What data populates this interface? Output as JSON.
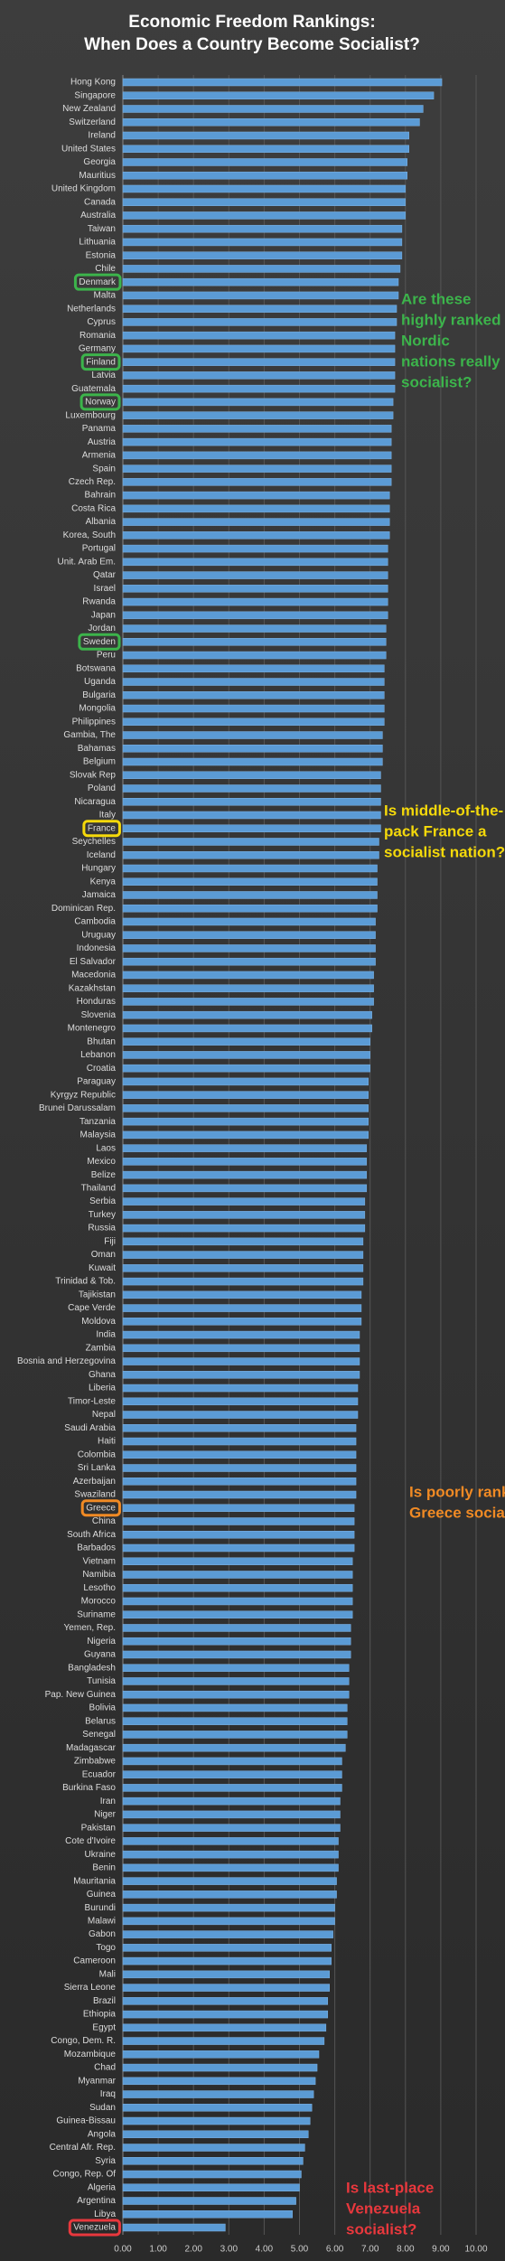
{
  "chart_data": {
    "type": "barh",
    "title": [
      "Economic Freedom Rankings:",
      "When Does a Country Become Socialist?"
    ],
    "categories": [
      "Hong Kong",
      "Singapore",
      "New Zealand",
      "Switzerland",
      "Ireland",
      "United States",
      "Georgia",
      "Mauritius",
      "United Kingdom",
      "Canada",
      "Australia",
      "Taiwan",
      "Lithuania",
      "Estonia",
      "Chile",
      "Denmark",
      "Malta",
      "Netherlands",
      "Cyprus",
      "Romania",
      "Germany",
      "Finland",
      "Latvia",
      "Guatemala",
      "Norway",
      "Luxembourg",
      "Panama",
      "Austria",
      "Armenia",
      "Spain",
      "Czech Rep.",
      "Bahrain",
      "Costa Rica",
      "Albania",
      "Korea, South",
      "Portugal",
      "Unit. Arab Em.",
      "Qatar",
      "Israel",
      "Rwanda",
      "Japan",
      "Jordan",
      "Sweden",
      "Peru",
      "Botswana",
      "Uganda",
      "Bulgaria",
      "Mongolia",
      "Philippines",
      "Gambia, The",
      "Bahamas",
      "Belgium",
      "Slovak Rep",
      "Poland",
      "Nicaragua",
      "Italy",
      "France",
      "Seychelles",
      "Iceland",
      "Hungary",
      "Kenya",
      "Jamaica",
      "Dominican Rep.",
      "Cambodia",
      "Uruguay",
      "Indonesia",
      "El Salvador",
      "Macedonia",
      "Kazakhstan",
      "Honduras",
      "Slovenia",
      "Montenegro",
      "Bhutan",
      "Lebanon",
      "Croatia",
      "Paraguay",
      "Kyrgyz Republic",
      "Brunei Darussalam",
      "Tanzania",
      "Malaysia",
      "Laos",
      "Mexico",
      "Belize",
      "Thailand",
      "Serbia",
      "Turkey",
      "Russia",
      "Fiji",
      "Oman",
      "Kuwait",
      "Trinidad & Tob.",
      "Tajikistan",
      "Cape Verde",
      "Moldova",
      "India",
      "Zambia",
      "Bosnia and Herzegovina",
      "Ghana",
      "Liberia",
      "Timor-Leste",
      "Nepal",
      "Saudi Arabia",
      "Haiti",
      "Colombia",
      "Sri Lanka",
      "Azerbaijan",
      "Swaziland",
      "Greece",
      "China",
      "South Africa",
      "Barbados",
      "Vietnam",
      "Namibia",
      "Lesotho",
      "Morocco",
      "Suriname",
      "Yemen, Rep.",
      "Nigeria",
      "Guyana",
      "Bangladesh",
      "Tunisia",
      "Pap. New Guinea",
      "Bolivia",
      "Belarus",
      "Senegal",
      "Madagascar",
      "Zimbabwe",
      "Ecuador",
      "Burkina Faso",
      "Iran",
      "Niger",
      "Pakistan",
      "Cote d'Ivoire",
      "Ukraine",
      "Benin",
      "Mauritania",
      "Guinea",
      "Burundi",
      "Malawi",
      "Gabon",
      "Togo",
      "Cameroon",
      "Mali",
      "Sierra Leone",
      "Brazil",
      "Ethiopia",
      "Egypt",
      "Congo, Dem. R.",
      "Mozambique",
      "Chad",
      "Myanmar",
      "Iraq",
      "Sudan",
      "Guinea-Bissau",
      "Angola",
      "Central Afr. Rep.",
      "Syria",
      "Congo, Rep. Of",
      "Algeria",
      "Argentina",
      "Libya",
      "Venezuela"
    ],
    "values": [
      9.03,
      8.8,
      8.5,
      8.4,
      8.1,
      8.1,
      8.05,
      8.05,
      8.0,
      8.0,
      8.0,
      7.9,
      7.9,
      7.9,
      7.85,
      7.8,
      7.8,
      7.75,
      7.75,
      7.7,
      7.7,
      7.7,
      7.7,
      7.7,
      7.65,
      7.65,
      7.6,
      7.6,
      7.6,
      7.6,
      7.6,
      7.55,
      7.55,
      7.55,
      7.55,
      7.5,
      7.5,
      7.5,
      7.5,
      7.5,
      7.5,
      7.45,
      7.45,
      7.45,
      7.4,
      7.4,
      7.4,
      7.4,
      7.4,
      7.35,
      7.35,
      7.35,
      7.3,
      7.3,
      7.3,
      7.3,
      7.3,
      7.25,
      7.25,
      7.2,
      7.2,
      7.2,
      7.2,
      7.15,
      7.15,
      7.15,
      7.15,
      7.1,
      7.1,
      7.1,
      7.05,
      7.05,
      7.0,
      7.0,
      7.0,
      6.95,
      6.95,
      6.95,
      6.95,
      6.95,
      6.9,
      6.9,
      6.9,
      6.9,
      6.85,
      6.85,
      6.85,
      6.8,
      6.8,
      6.8,
      6.8,
      6.75,
      6.75,
      6.75,
      6.7,
      6.7,
      6.7,
      6.7,
      6.65,
      6.65,
      6.65,
      6.6,
      6.6,
      6.6,
      6.6,
      6.6,
      6.6,
      6.55,
      6.55,
      6.55,
      6.55,
      6.5,
      6.5,
      6.5,
      6.5,
      6.5,
      6.45,
      6.45,
      6.45,
      6.4,
      6.4,
      6.4,
      6.35,
      6.35,
      6.35,
      6.3,
      6.2,
      6.2,
      6.2,
      6.15,
      6.15,
      6.15,
      6.1,
      6.1,
      6.1,
      6.05,
      6.05,
      6.0,
      6.0,
      5.95,
      5.9,
      5.9,
      5.85,
      5.85,
      5.8,
      5.8,
      5.75,
      5.7,
      5.55,
      5.5,
      5.45,
      5.4,
      5.35,
      5.3,
      5.25,
      5.15,
      5.1,
      5.05,
      5.0,
      4.9,
      4.8,
      2.9
    ],
    "color": "#5b9bd5",
    "xlim": [
      0,
      10
    ],
    "xticks": [
      {
        "value": 0,
        "label": "0.00"
      },
      {
        "value": 1,
        "label": "1.00"
      },
      {
        "value": 2,
        "label": "2.00"
      },
      {
        "value": 3,
        "label": "3.00"
      },
      {
        "value": 4,
        "label": "4.00"
      },
      {
        "value": 5,
        "label": "5.00"
      },
      {
        "value": 6,
        "label": "6.00"
      },
      {
        "value": 7,
        "label": "7.00"
      },
      {
        "value": 8,
        "label": "8.00"
      },
      {
        "value": 9,
        "label": "9.00"
      },
      {
        "value": 10,
        "label": "10.00"
      }
    ],
    "grid": true,
    "highlights": [
      {
        "index": 15,
        "color": "#3cb44b"
      },
      {
        "index": 21,
        "color": "#3cb44b"
      },
      {
        "index": 24,
        "color": "#3cb44b"
      },
      {
        "index": 42,
        "color": "#3cb44b"
      },
      {
        "index": 56,
        "color": "#f5d90a"
      },
      {
        "index": 107,
        "color": "#f08a24"
      },
      {
        "index": 161,
        "color": "#e8383d"
      }
    ],
    "annotations": [
      {
        "lines": [
          "Are these",
          "highly ranked",
          "Nordic",
          "nations really",
          "socialist?"
        ],
        "color": "#3cb44b"
      },
      {
        "lines": [
          "Is middle-of-the-",
          "pack France a",
          "socialist nation?"
        ],
        "color": "#f5d90a"
      },
      {
        "lines": [
          "Is poorly ranked",
          "Greece socialist?"
        ],
        "color": "#f08a24"
      },
      {
        "lines": [
          "Is last-place",
          "Venezuela",
          "socialist?"
        ],
        "color": "#e8383d"
      }
    ]
  }
}
